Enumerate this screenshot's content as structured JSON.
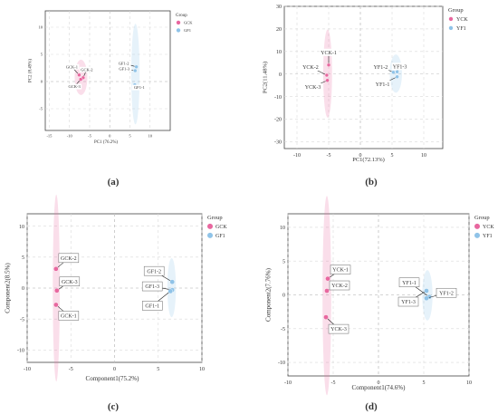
{
  "panel_labels": [
    "(a)",
    "(b)",
    "(c)",
    "(d)"
  ],
  "chart_data": [
    {
      "type": "scatter",
      "panel": "(a)",
      "xlabel": "PC1 (76.2%)",
      "ylabel": "PC2 (8.49%)",
      "xlim": [
        -16,
        15
      ],
      "ylim": [
        -9,
        13
      ],
      "xticks": [
        -15,
        -10,
        -5,
        0,
        5,
        10
      ],
      "yticks": [
        -5,
        0,
        5,
        10
      ],
      "grid": true,
      "legend_title": "Group",
      "legend_position": "top-right",
      "series": [
        {
          "name": "GCK",
          "color": "#e8679f",
          "points": [
            {
              "label": "GCK-1",
              "x": -7.6,
              "y": 1.2
            },
            {
              "label": "GCK-2",
              "x": -6.6,
              "y": 0.7
            },
            {
              "label": "GCK-3",
              "x": -7.2,
              "y": 0.4
            }
          ]
        },
        {
          "name": "GF1",
          "color": "#8fc3e8",
          "points": [
            {
              "label": "GF1-1",
              "x": 6.2,
              "y": -0.6
            },
            {
              "label": "GF1-2",
              "x": 6.6,
              "y": 2.7
            },
            {
              "label": "GF1-3",
              "x": 6.3,
              "y": 2.0
            }
          ]
        }
      ]
    },
    {
      "type": "scatter",
      "panel": "(b)",
      "xlabel": "PC1(72.13%)",
      "ylabel": "PC2(11.48%)",
      "xlim": [
        -12,
        13
      ],
      "ylim": [
        -33,
        30
      ],
      "xticks": [
        -10,
        -5,
        0,
        5,
        10
      ],
      "yticks": [
        -30,
        -20,
        -10,
        0,
        10,
        20,
        30
      ],
      "grid": true,
      "legend_title": "Group",
      "legend_position": "top-right",
      "series": [
        {
          "name": "YCK",
          "color": "#e8679f",
          "points": [
            {
              "label": "YCK-1",
              "x": -5.0,
              "y": 4.0
            },
            {
              "label": "YCK-2",
              "x": -5.3,
              "y": -0.5
            },
            {
              "label": "YCK-3",
              "x": -5.2,
              "y": -2.8
            }
          ]
        },
        {
          "name": "YF1",
          "color": "#8fc3e8",
          "points": [
            {
              "label": "YF1-1",
              "x": 5.8,
              "y": -1.2
            },
            {
              "label": "YF1-2",
              "x": 5.2,
              "y": 0.8
            },
            {
              "label": "YF1-3",
              "x": 5.8,
              "y": 1.0
            }
          ]
        }
      ]
    },
    {
      "type": "scatter",
      "panel": "(c)",
      "xlabel": "Component1(75.2%)",
      "ylabel": "Component2(8.5%)",
      "xlim": [
        -10,
        10
      ],
      "ylim": [
        -12,
        12
      ],
      "xticks": [
        -10,
        -5,
        0,
        5,
        10
      ],
      "yticks": [
        -10,
        -5,
        0,
        5,
        10
      ],
      "grid": true,
      "legend_title": "Group",
      "legend_position": "top-right",
      "series": [
        {
          "name": "GCK",
          "color": "#e8679f",
          "points": [
            {
              "label": "GCK-2",
              "x": -6.7,
              "y": 3.1
            },
            {
              "label": "GCK-3",
              "x": -6.6,
              "y": -0.4
            },
            {
              "label": "GCK-1",
              "x": -6.7,
              "y": -2.7
            }
          ]
        },
        {
          "name": "GF1",
          "color": "#8fc3e8",
          "points": [
            {
              "label": "GF1-2",
              "x": 6.6,
              "y": 1.0
            },
            {
              "label": "GF1-3",
              "x": 6.6,
              "y": -0.3
            },
            {
              "label": "GF1-1",
              "x": 6.4,
              "y": -0.5
            }
          ]
        }
      ]
    },
    {
      "type": "scatter",
      "panel": "(d)",
      "xlabel": "Component1(74.6%)",
      "ylabel": "Component2(7.76%)",
      "xlim": [
        -10,
        10
      ],
      "ylim": [
        -12,
        12
      ],
      "xticks": [
        -10,
        -5,
        0,
        5,
        10
      ],
      "yticks": [
        -10,
        -5,
        0,
        5,
        10
      ],
      "grid": true,
      "legend_title": "Group",
      "legend_position": "top-right",
      "series": [
        {
          "name": "YCK",
          "color": "#e8679f",
          "points": [
            {
              "label": "YCK-1",
              "x": -5.6,
              "y": 2.4
            },
            {
              "label": "YCK-2",
              "x": -5.7,
              "y": 0.6
            },
            {
              "label": "YCK-3",
              "x": -5.8,
              "y": -3.3
            }
          ]
        },
        {
          "name": "YF1",
          "color": "#8fc3e8",
          "points": [
            {
              "label": "YF1-1",
              "x": 5.6,
              "y": -0.3
            },
            {
              "label": "YF1-2",
              "x": 5.3,
              "y": -0.5
            },
            {
              "label": "YF1-3",
              "x": 5.3,
              "y": 0.6
            }
          ]
        }
      ]
    }
  ]
}
